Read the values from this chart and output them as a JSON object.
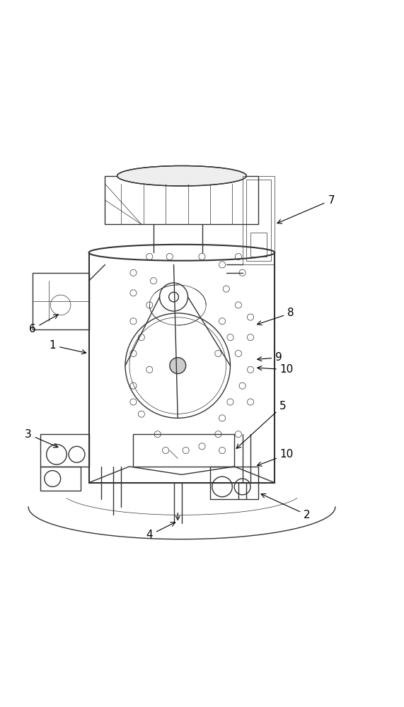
{
  "fig_width": 5.71,
  "fig_height": 10.0,
  "dpi": 100,
  "bg_color": "#ffffff",
  "line_color": "#333333",
  "line_width": 1.0,
  "thin_line": 0.5,
  "thick_line": 1.5,
  "annotations": {
    "1": [
      0.18,
      0.52,
      0.13,
      0.5,
      "1"
    ],
    "2": [
      0.75,
      0.1,
      0.68,
      0.115,
      "2"
    ],
    "3": [
      0.08,
      0.3,
      0.16,
      0.31,
      "3"
    ],
    "4": [
      0.38,
      0.05,
      0.38,
      0.09,
      "4"
    ],
    "5": [
      0.68,
      0.38,
      0.6,
      0.4,
      "5"
    ],
    "6": [
      0.1,
      0.56,
      0.2,
      0.58,
      "6"
    ],
    "7": [
      0.82,
      0.87,
      0.72,
      0.83,
      "7"
    ],
    "8": [
      0.72,
      0.6,
      0.67,
      0.57,
      "8"
    ],
    "9": [
      0.68,
      0.48,
      0.63,
      0.49,
      "9"
    ],
    "10a": [
      0.7,
      0.45,
      0.63,
      0.47,
      "10"
    ],
    "10b": [
      0.7,
      0.25,
      0.62,
      0.27,
      "10"
    ]
  }
}
